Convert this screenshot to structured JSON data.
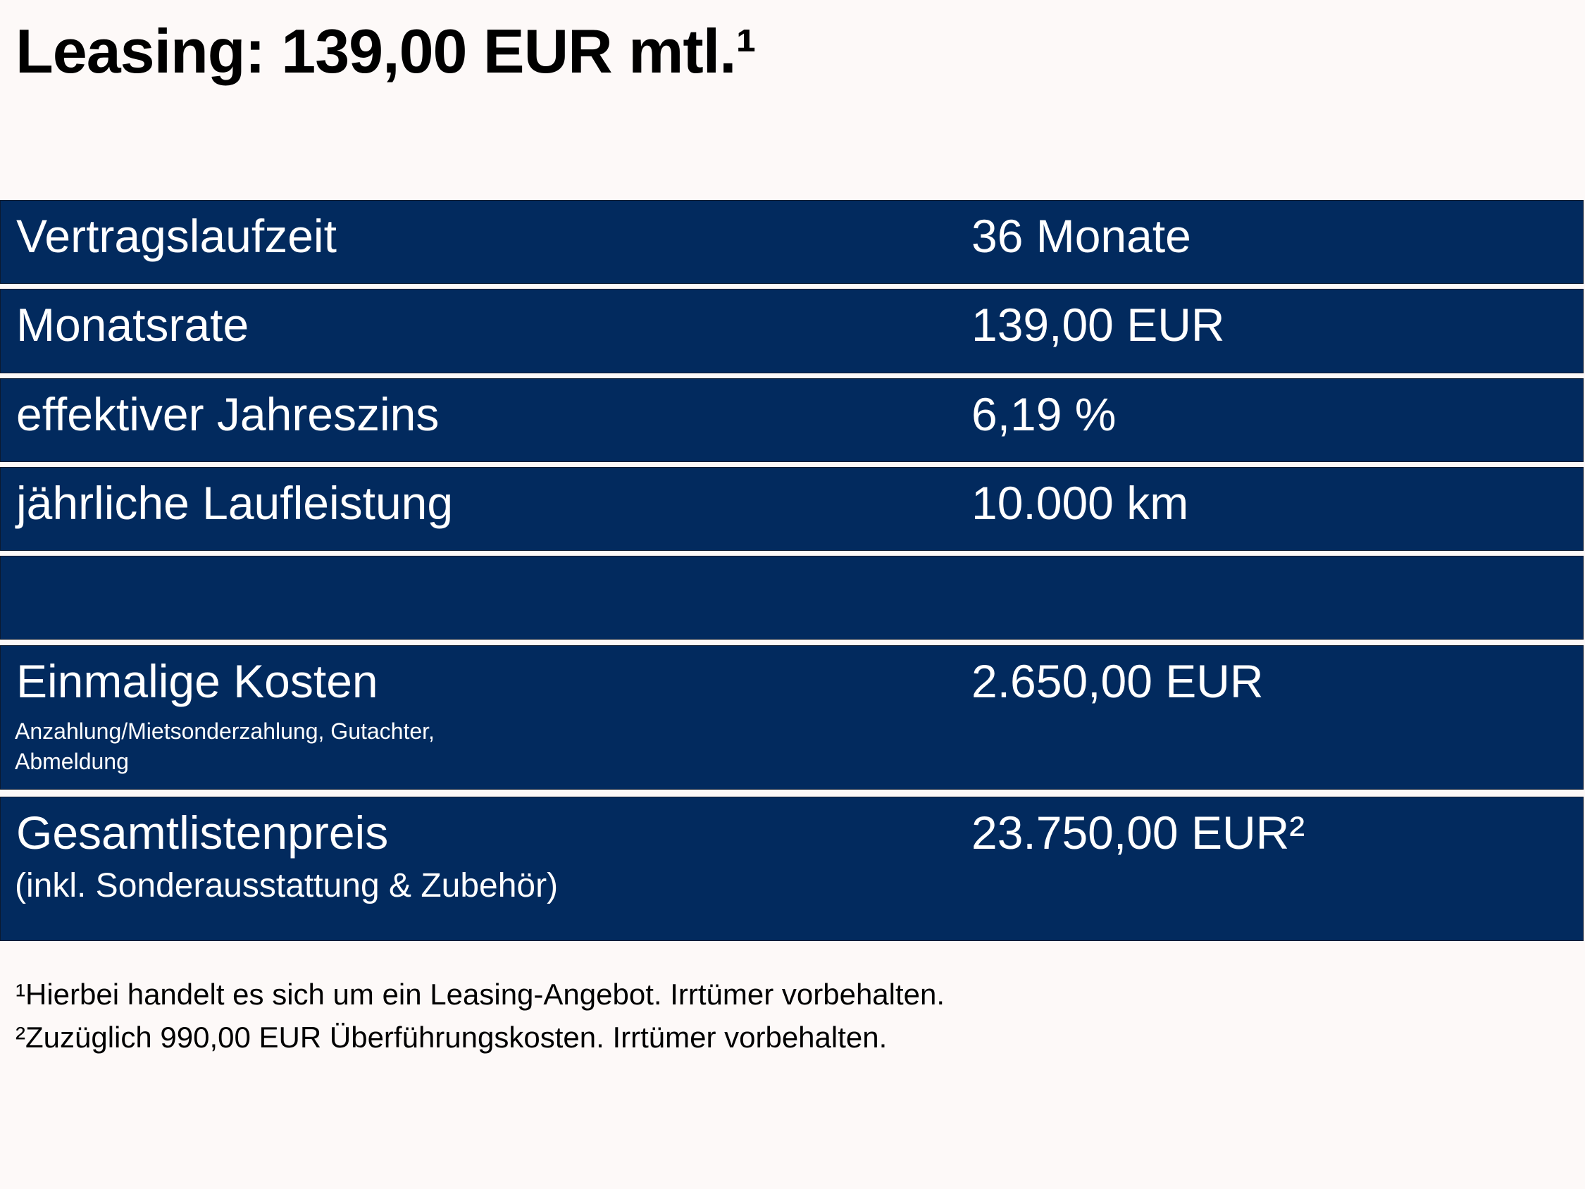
{
  "header": {
    "title": "Leasing: 139,00 EUR mtl.¹"
  },
  "table": {
    "rows": [
      {
        "label": "Vertragslaufzeit",
        "value": "36 Monate"
      },
      {
        "label": "Monatsrate",
        "value": "139,00 EUR"
      },
      {
        "label": "effektiver Jahreszins",
        "value": "6,19 %"
      },
      {
        "label": "jährliche Laufleistung",
        "value": "10.000 km"
      },
      {
        "label": "Einmalige Kosten",
        "note": "Anzahlung/Mietsonderzahlung, Gutachter, Abmeldung",
        "value": "2.650,00 EUR"
      },
      {
        "label": "Gesamtlistenpreis",
        "note": "(inkl. Sonderausstattung & Zubehör)",
        "value": "23.750,00 EUR²"
      }
    ]
  },
  "footnotes": [
    "¹Hierbei handelt es sich um ein Leasing-Angebot. Irrtümer vorbehalten.",
    "²Zuzüglich 990,00 EUR Überführungskosten. Irrtümer vorbehalten."
  ]
}
